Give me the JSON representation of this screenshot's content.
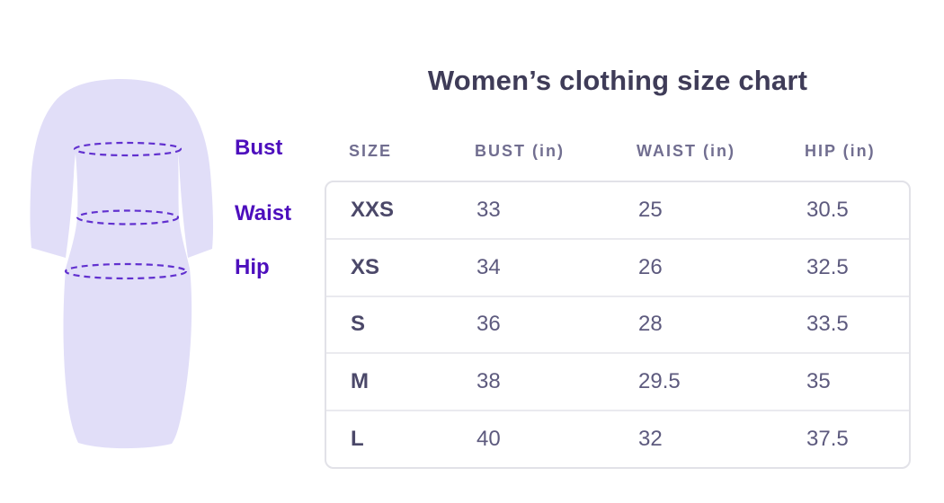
{
  "title": "Women’s clothing size chart",
  "figure": {
    "description": "dress-silhouette-with-measurement-lines",
    "labels": [
      {
        "text": "Bust"
      },
      {
        "text": "Waist"
      },
      {
        "text": "Hip"
      }
    ]
  },
  "chart_data": {
    "type": "table",
    "title": "Women’s clothing size chart",
    "columns": [
      "SIZE",
      "BUST (in)",
      "WAIST (in)",
      "HIP (in)"
    ],
    "rows": [
      [
        "XXS",
        "33",
        "25",
        "30.5"
      ],
      [
        "XS",
        "34",
        "26",
        "32.5"
      ],
      [
        "S",
        "36",
        "28",
        "33.5"
      ],
      [
        "M",
        "38",
        "29.5",
        "35"
      ],
      [
        "L",
        "40",
        "32",
        "37.5"
      ]
    ]
  },
  "colors": {
    "title_text": "#3f3c58",
    "header_text": "#716e90",
    "size_text": "#4b4869",
    "value_text": "#5d5a7e",
    "label_purple": "#4d0fbd",
    "dress_fill": "#e1def8",
    "measure_line": "#6130cf",
    "table_border": "#e2e2e8",
    "row_divider": "#eaeaef",
    "background": "#ffffff"
  }
}
